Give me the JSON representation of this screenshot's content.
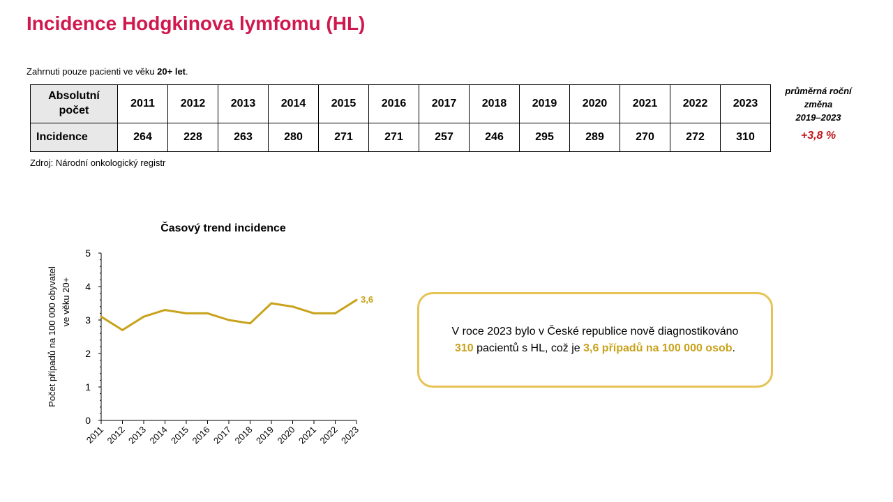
{
  "title": "Incidence Hodgkinova lymfomu (HL)",
  "note": {
    "prefix": "Zahrnuti pouze pacienti ve věku ",
    "bold": "20+ let",
    "suffix": "."
  },
  "table": {
    "header_label_line1": "Absolutní",
    "header_label_line2": "počet",
    "row_label": "Incidence",
    "years": [
      "2011",
      "2012",
      "2013",
      "2014",
      "2015",
      "2016",
      "2017",
      "2018",
      "2019",
      "2020",
      "2021",
      "2022",
      "2023"
    ],
    "values": [
      "264",
      "228",
      "263",
      "280",
      "271",
      "271",
      "257",
      "246",
      "295",
      "289",
      "270",
      "272",
      "310"
    ]
  },
  "source": "Zdroj: Národní onkologický registr",
  "change": {
    "label_line1": "průměrná roční",
    "label_line2": "změna",
    "label_line3": "2019–2023",
    "value": "+3,8 %"
  },
  "chart_data": {
    "type": "line",
    "title": "Časový trend incidence",
    "ylabel_line1": "Počet případů na 100 000 obyvatel",
    "ylabel_line2": "ve věku 20+",
    "x": [
      "2011",
      "2012",
      "2013",
      "2014",
      "2015",
      "2016",
      "2017",
      "2018",
      "2019",
      "2020",
      "2021",
      "2022",
      "2023"
    ],
    "series": [
      {
        "values": [
          3.1,
          2.7,
          3.1,
          3.3,
          3.2,
          3.2,
          3.0,
          2.9,
          3.5,
          3.4,
          3.2,
          3.2,
          3.6
        ]
      }
    ],
    "yticks": [
      0,
      1,
      2,
      3,
      4,
      5
    ],
    "ylim": [
      0,
      5
    ],
    "end_label": "3,6",
    "line_color": "#c8a21a",
    "grid": false
  },
  "callout": {
    "line1": "V roce 2023 bylo v České republice nově diagnostikováno",
    "count": "310",
    "mid": " pacientů s HL, což je ",
    "rate": "3,6 případů na 100 000 osob",
    "end": "."
  }
}
